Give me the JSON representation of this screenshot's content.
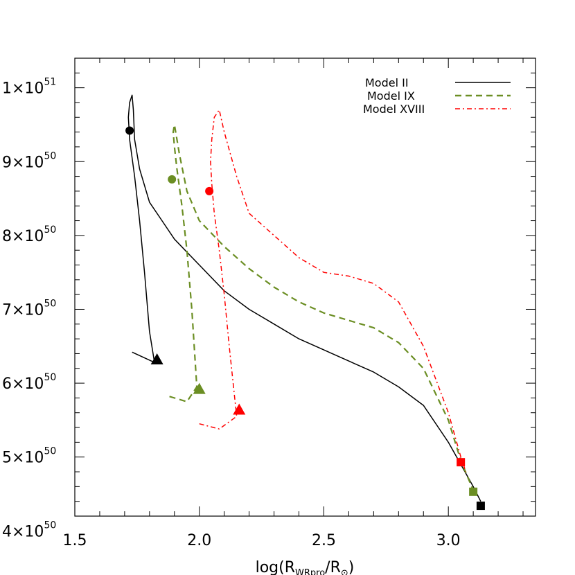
{
  "chart_data": {
    "type": "line",
    "title": "",
    "xlabel": "log(R_WRpro/R_⊙)",
    "xlabel_parts": {
      "prefix": "log(R",
      "sub1": "WRpro",
      "mid": "/R",
      "sub2": "⊙",
      "suffix": ")"
    },
    "ylabel": "",
    "xlim": [
      1.5,
      3.35
    ],
    "ylim": [
      4.2e+50,
      1.04e+51
    ],
    "x_ticks": [
      {
        "value": 1.5,
        "label": "1.5"
      },
      {
        "value": 2.0,
        "label": "2.0"
      },
      {
        "value": 2.5,
        "label": "2.5"
      },
      {
        "value": 3.0,
        "label": "3.0"
      }
    ],
    "y_ticks": [
      {
        "value": 4e+50,
        "mantissa": "4",
        "exp": "50"
      },
      {
        "value": 5e+50,
        "mantissa": "5",
        "exp": "50"
      },
      {
        "value": 6e+50,
        "mantissa": "6",
        "exp": "50"
      },
      {
        "value": 7e+50,
        "mantissa": "7",
        "exp": "50"
      },
      {
        "value": 8e+50,
        "mantissa": "8",
        "exp": "50"
      },
      {
        "value": 9e+50,
        "mantissa": "9",
        "exp": "50"
      },
      {
        "value": 1e+51,
        "mantissa": "1",
        "exp": "51"
      }
    ],
    "legend_position": "top-right",
    "series": [
      {
        "name": "Model II",
        "color": "#000000",
        "style": "solid",
        "marker_color": "#000000",
        "x": [
          1.73,
          1.82,
          1.8,
          1.78,
          1.76,
          1.74,
          1.72,
          1.715,
          1.72,
          1.73,
          1.735,
          1.74,
          1.76,
          1.8,
          1.85,
          1.9,
          2.0,
          2.1,
          2.2,
          2.3,
          2.4,
          2.5,
          2.6,
          2.7,
          2.8,
          2.9,
          3.0,
          3.05,
          3.1,
          3.13
        ],
        "y": [
          6.42e+50,
          6.28e+50,
          6.7e+50,
          7.5e+50,
          8.2e+50,
          8.8e+50,
          9.3e+50,
          9.6e+50,
          9.8e+50,
          9.9e+50,
          9.7e+50,
          9.3e+50,
          8.9e+50,
          8.45e+50,
          8.2e+50,
          7.95e+50,
          7.6e+50,
          7.25e+50,
          7e+50,
          6.8e+50,
          6.6e+50,
          6.45e+50,
          6.3e+50,
          6.15e+50,
          5.95e+50,
          5.7e+50,
          5.2e+50,
          4.9e+50,
          4.6e+50,
          4.4e+50
        ],
        "markers": [
          {
            "shape": "circle",
            "x": 1.72,
            "y": 9.42e+50
          },
          {
            "shape": "triangle",
            "x": 1.83,
            "y": 6.32e+50
          },
          {
            "shape": "square",
            "x": 3.13,
            "y": 4.34e+50
          }
        ]
      },
      {
        "name": "Model IX",
        "color": "#6b8e23",
        "style": "dashed",
        "marker_color": "#6b8e23",
        "x": [
          1.88,
          1.95,
          1.99,
          1.97,
          1.95,
          1.93,
          1.91,
          1.9,
          1.895,
          1.9,
          1.92,
          1.95,
          2.0,
          2.1,
          2.2,
          2.3,
          2.4,
          2.5,
          2.6,
          2.7,
          2.8,
          2.9,
          3.0,
          3.05,
          3.1
        ],
        "y": [
          5.82e+50,
          5.75e+50,
          5.95e+50,
          7e+50,
          7.8e+50,
          8.4e+50,
          8.9e+50,
          9.2e+50,
          9.4e+50,
          9.5e+50,
          9.1e+50,
          8.6e+50,
          8.2e+50,
          7.85e+50,
          7.55e+50,
          7.3e+50,
          7.1e+50,
          6.95e+50,
          6.85e+50,
          6.75e+50,
          6.55e+50,
          6.2e+50,
          5.5e+50,
          4.95e+50,
          4.55e+50
        ],
        "markers": [
          {
            "shape": "circle",
            "x": 1.89,
            "y": 8.76e+50
          },
          {
            "shape": "triangle",
            "x": 2.0,
            "y": 5.92e+50
          },
          {
            "shape": "square",
            "x": 3.1,
            "y": 4.53e+50
          }
        ]
      },
      {
        "name": "Model XVIII",
        "color": "#ff0000",
        "style": "dashdot",
        "marker_color": "#ff0000",
        "x": [
          2.0,
          2.08,
          2.15,
          2.12,
          2.1,
          2.08,
          2.06,
          2.05,
          2.045,
          2.05,
          2.06,
          2.08,
          2.1,
          2.15,
          2.2,
          2.3,
          2.4,
          2.5,
          2.6,
          2.7,
          2.8,
          2.9,
          3.0,
          3.05,
          3.07
        ],
        "y": [
          5.45e+50,
          5.38e+50,
          5.55e+50,
          6.5e+50,
          7.2e+50,
          7.8e+50,
          8.3e+50,
          8.7e+50,
          9e+50,
          9.3e+50,
          9.6e+50,
          9.7e+50,
          9.4e+50,
          8.8e+50,
          8.3e+50,
          8e+50,
          7.7e+50,
          7.5e+50,
          7.45e+50,
          7.35e+50,
          7.1e+50,
          6.5e+50,
          5.6e+50,
          5e+50,
          4.8e+50
        ],
        "markers": [
          {
            "shape": "circle",
            "x": 2.04,
            "y": 8.6e+50
          },
          {
            "shape": "triangle",
            "x": 2.16,
            "y": 5.64e+50
          },
          {
            "shape": "square",
            "x": 3.05,
            "y": 4.93e+50
          }
        ]
      }
    ]
  }
}
